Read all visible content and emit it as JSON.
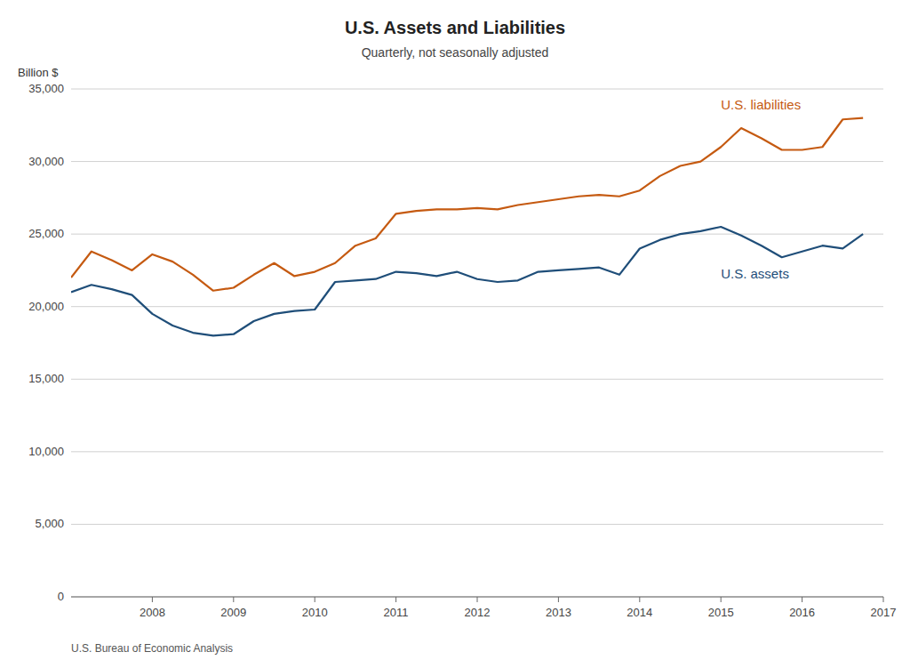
{
  "chart_data": {
    "type": "line",
    "title": "U.S. Assets and Liabilities",
    "subtitle": "Quarterly, not seasonally adjusted",
    "y_label": "Billion $",
    "annotations": [
      "U.S. Bureau of Economic Analysis"
    ],
    "x": [
      2007.0,
      2007.25,
      2007.5,
      2007.75,
      2008.0,
      2008.25,
      2008.5,
      2008.75,
      2009.0,
      2009.25,
      2009.5,
      2009.75,
      2010.0,
      2010.25,
      2010.5,
      2010.75,
      2011.0,
      2011.25,
      2011.5,
      2011.75,
      2012.0,
      2012.25,
      2012.5,
      2012.75,
      2013.0,
      2013.25,
      2013.5,
      2013.75,
      2014.0,
      2014.25,
      2014.5,
      2014.75,
      2015.0,
      2015.25,
      2015.5,
      2015.75,
      2016.0,
      2016.25,
      2016.5,
      2016.75
    ],
    "series": [
      {
        "name": "U.S. liabilities",
        "color": "#C55A11",
        "values": [
          22000,
          23800,
          23200,
          22500,
          23600,
          23100,
          22200,
          21100,
          21300,
          22200,
          23000,
          22100,
          22400,
          23000,
          24200,
          24700,
          26400,
          26600,
          26700,
          26700,
          26800,
          26700,
          27000,
          27200,
          27400,
          27600,
          27700,
          27600,
          28000,
          29000,
          29700,
          30000,
          31000,
          32300,
          31600,
          30800,
          30800,
          31000,
          32900,
          33000
        ]
      },
      {
        "name": "U.S. assets",
        "color": "#1F4E79",
        "values": [
          21000,
          21500,
          21200,
          20800,
          19500,
          18700,
          18200,
          18000,
          18100,
          19000,
          19500,
          19700,
          19800,
          21700,
          21800,
          21900,
          22400,
          22300,
          22100,
          22400,
          21900,
          21700,
          21800,
          22400,
          22500,
          22600,
          22700,
          22200,
          24000,
          24600,
          25000,
          25200,
          25500,
          24900,
          24200,
          23400,
          23800,
          24200,
          24000,
          25000
        ]
      }
    ],
    "xlim": [
      2007.0,
      2017.0
    ],
    "xticks": [
      2008,
      2009,
      2010,
      2011,
      2012,
      2013,
      2014,
      2015,
      2016,
      2017
    ],
    "ylim": [
      0,
      35000
    ],
    "yticks": [
      0,
      {
        "value": 5000,
        "label": "5,000"
      },
      {
        "value": 10000,
        "label": "10,000"
      },
      {
        "value": 15000,
        "label": "15,000"
      },
      {
        "value": 20000,
        "label": "20,000"
      },
      {
        "value": 25000,
        "label": "25,000"
      },
      {
        "value": 30000,
        "label": "30,000"
      },
      {
        "value": 35000,
        "label": "35,000"
      }
    ],
    "grid": true
  }
}
